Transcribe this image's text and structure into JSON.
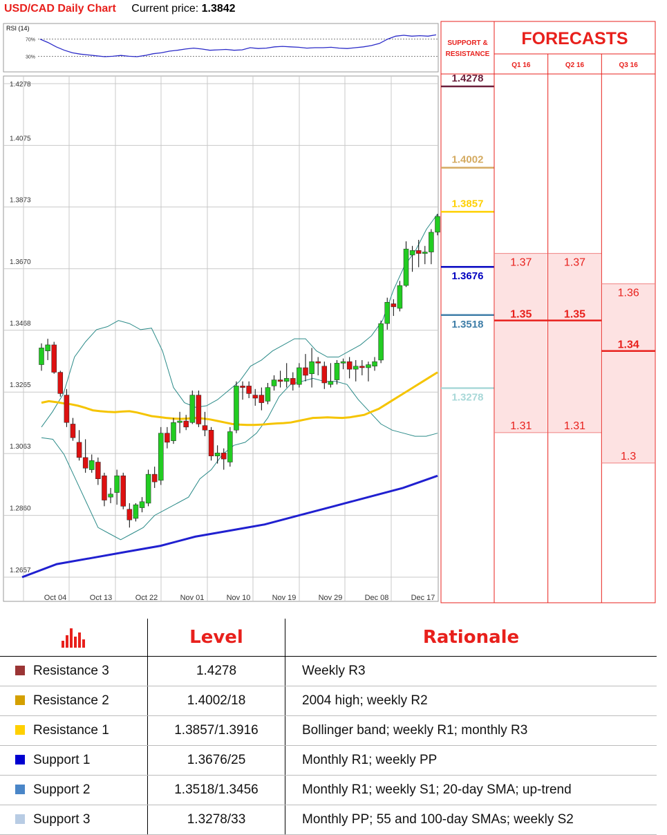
{
  "header": {
    "title": "USD/CAD Daily Chart",
    "price_label": "Current price:",
    "price": "1.3842"
  },
  "rsi": {
    "label": "RSI (14)",
    "levels": [
      "70%",
      "30%"
    ],
    "values": [
      70,
      62,
      52,
      44,
      38,
      35,
      33,
      31,
      29,
      30,
      32,
      30,
      29,
      32,
      36,
      38,
      42,
      44,
      47,
      49,
      47,
      44,
      45,
      46,
      44,
      45,
      50,
      48,
      49,
      52,
      53,
      52,
      51,
      49,
      50,
      50,
      51,
      49,
      48,
      50,
      52,
      55,
      60,
      70,
      77,
      79,
      77,
      78,
      77,
      80
    ]
  },
  "chart_data": {
    "type": "candlestick",
    "title": "USD/CAD Daily Chart",
    "y_ticks": [
      1.4278,
      1.4075,
      1.3873,
      1.367,
      1.3468,
      1.3265,
      1.3063,
      1.286,
      1.2657
    ],
    "y_tick_labels": [
      "1.4278",
      "1.4075",
      "1.3873",
      "1.3670",
      "1.3468",
      "1.3265",
      "1.3063",
      "1.2860",
      "1.2657"
    ],
    "ylim": [
      1.262,
      1.43
    ],
    "x_labels": [
      "Oct 04",
      "Oct 13",
      "Oct 22",
      "Nov 01",
      "Nov 10",
      "Nov 19",
      "Nov 29",
      "Dec 08",
      "Dec 17"
    ],
    "candles": [
      {
        "o": 1.3355,
        "h": 1.3425,
        "l": 1.3335,
        "c": 1.341
      },
      {
        "o": 1.34,
        "h": 1.344,
        "l": 1.337,
        "c": 1.342
      },
      {
        "o": 1.342,
        "h": 1.343,
        "l": 1.3325,
        "c": 1.333
      },
      {
        "o": 1.333,
        "h": 1.3335,
        "l": 1.325,
        "c": 1.326
      },
      {
        "o": 1.3255,
        "h": 1.3275,
        "l": 1.315,
        "c": 1.3165
      },
      {
        "o": 1.316,
        "h": 1.318,
        "l": 1.3105,
        "c": 1.3115
      },
      {
        "o": 1.31,
        "h": 1.314,
        "l": 1.304,
        "c": 1.305
      },
      {
        "o": 1.305,
        "h": 1.311,
        "l": 1.3,
        "c": 1.3015
      },
      {
        "o": 1.301,
        "h": 1.306,
        "l": 1.3,
        "c": 1.304
      },
      {
        "o": 1.3035,
        "h": 1.305,
        "l": 1.296,
        "c": 1.298
      },
      {
        "o": 1.299,
        "h": 1.3,
        "l": 1.289,
        "c": 1.291
      },
      {
        "o": 1.292,
        "h": 1.295,
        "l": 1.29,
        "c": 1.293
      },
      {
        "o": 1.2935,
        "h": 1.301,
        "l": 1.2895,
        "c": 1.299
      },
      {
        "o": 1.299,
        "h": 1.3,
        "l": 1.288,
        "c": 1.289
      },
      {
        "o": 1.288,
        "h": 1.29,
        "l": 1.282,
        "c": 1.2845
      },
      {
        "o": 1.285,
        "h": 1.29,
        "l": 1.284,
        "c": 1.2895
      },
      {
        "o": 1.2885,
        "h": 1.292,
        "l": 1.287,
        "c": 1.2905
      },
      {
        "o": 1.29,
        "h": 1.301,
        "l": 1.289,
        "c": 1.2995
      },
      {
        "o": 1.2995,
        "h": 1.302,
        "l": 1.295,
        "c": 1.297
      },
      {
        "o": 1.2975,
        "h": 1.315,
        "l": 1.296,
        "c": 1.313
      },
      {
        "o": 1.313,
        "h": 1.315,
        "l": 1.308,
        "c": 1.31
      },
      {
        "o": 1.3105,
        "h": 1.318,
        "l": 1.3095,
        "c": 1.3165
      },
      {
        "o": 1.3165,
        "h": 1.32,
        "l": 1.313,
        "c": 1.317
      },
      {
        "o": 1.317,
        "h": 1.319,
        "l": 1.314,
        "c": 1.315
      },
      {
        "o": 1.3165,
        "h": 1.327,
        "l": 1.316,
        "c": 1.3255
      },
      {
        "o": 1.3255,
        "h": 1.327,
        "l": 1.315,
        "c": 1.316
      },
      {
        "o": 1.3155,
        "h": 1.32,
        "l": 1.312,
        "c": 1.314
      },
      {
        "o": 1.314,
        "h": 1.315,
        "l": 1.304,
        "c": 1.3055
      },
      {
        "o": 1.3055,
        "h": 1.309,
        "l": 1.303,
        "c": 1.3065
      },
      {
        "o": 1.3065,
        "h": 1.308,
        "l": 1.301,
        "c": 1.3045
      },
      {
        "o": 1.3035,
        "h": 1.315,
        "l": 1.302,
        "c": 1.3135
      },
      {
        "o": 1.314,
        "h": 1.33,
        "l": 1.313,
        "c": 1.3285
      },
      {
        "o": 1.3285,
        "h": 1.33,
        "l": 1.324,
        "c": 1.328
      },
      {
        "o": 1.3285,
        "h": 1.33,
        "l": 1.3245,
        "c": 1.326
      },
      {
        "o": 1.3255,
        "h": 1.3275,
        "l": 1.322,
        "c": 1.3245
      },
      {
        "o": 1.3255,
        "h": 1.328,
        "l": 1.3205,
        "c": 1.323
      },
      {
        "o": 1.3235,
        "h": 1.3295,
        "l": 1.3225,
        "c": 1.328
      },
      {
        "o": 1.3285,
        "h": 1.332,
        "l": 1.327,
        "c": 1.3305
      },
      {
        "o": 1.3305,
        "h": 1.3335,
        "l": 1.328,
        "c": 1.33
      },
      {
        "o": 1.33,
        "h": 1.336,
        "l": 1.328,
        "c": 1.331
      },
      {
        "o": 1.331,
        "h": 1.333,
        "l": 1.327,
        "c": 1.329
      },
      {
        "o": 1.329,
        "h": 1.336,
        "l": 1.328,
        "c": 1.3345
      },
      {
        "o": 1.3345,
        "h": 1.339,
        "l": 1.33,
        "c": 1.332
      },
      {
        "o": 1.3325,
        "h": 1.341,
        "l": 1.328,
        "c": 1.3365
      },
      {
        "o": 1.3365,
        "h": 1.338,
        "l": 1.332,
        "c": 1.336
      },
      {
        "o": 1.335,
        "h": 1.3365,
        "l": 1.3275,
        "c": 1.3295
      },
      {
        "o": 1.329,
        "h": 1.336,
        "l": 1.328,
        "c": 1.33
      },
      {
        "o": 1.3305,
        "h": 1.337,
        "l": 1.329,
        "c": 1.336
      },
      {
        "o": 1.336,
        "h": 1.3375,
        "l": 1.334,
        "c": 1.3365
      },
      {
        "o": 1.3365,
        "h": 1.338,
        "l": 1.331,
        "c": 1.334
      },
      {
        "o": 1.334,
        "h": 1.337,
        "l": 1.33,
        "c": 1.335
      },
      {
        "o": 1.335,
        "h": 1.337,
        "l": 1.332,
        "c": 1.3345
      },
      {
        "o": 1.3345,
        "h": 1.3365,
        "l": 1.33,
        "c": 1.3355
      },
      {
        "o": 1.335,
        "h": 1.338,
        "l": 1.3335,
        "c": 1.3365
      },
      {
        "o": 1.337,
        "h": 1.35,
        "l": 1.336,
        "c": 1.349
      },
      {
        "o": 1.349,
        "h": 1.3575,
        "l": 1.347,
        "c": 1.356
      },
      {
        "o": 1.3555,
        "h": 1.357,
        "l": 1.3515,
        "c": 1.3545
      },
      {
        "o": 1.354,
        "h": 1.363,
        "l": 1.353,
        "c": 1.3615
      },
      {
        "o": 1.3615,
        "h": 1.376,
        "l": 1.361,
        "c": 1.3735
      },
      {
        "o": 1.3715,
        "h": 1.3745,
        "l": 1.366,
        "c": 1.373
      },
      {
        "o": 1.373,
        "h": 1.3765,
        "l": 1.3675,
        "c": 1.372
      },
      {
        "o": 1.372,
        "h": 1.3745,
        "l": 1.3685,
        "c": 1.3725
      },
      {
        "o": 1.3725,
        "h": 1.38,
        "l": 1.3685,
        "c": 1.379
      },
      {
        "o": 1.379,
        "h": 1.385,
        "l": 1.378,
        "c": 1.3842
      }
    ],
    "sma55": [
      1.323,
      1.3235,
      1.3232,
      1.3228,
      1.3225,
      1.322,
      1.3213,
      1.3205,
      1.3202,
      1.32,
      1.3199,
      1.3201,
      1.3202,
      1.3198,
      1.3192,
      1.3186,
      1.3183,
      1.318,
      1.3178,
      1.3177,
      1.3178,
      1.318,
      1.3178,
      1.3175,
      1.317,
      1.3165,
      1.316,
      1.3158,
      1.3157,
      1.3157,
      1.3158,
      1.316,
      1.3162,
      1.3163,
      1.3165,
      1.317,
      1.3175,
      1.318,
      1.3181,
      1.3182,
      1.3181,
      1.318,
      1.3182,
      1.3186,
      1.319,
      1.32,
      1.321,
      1.3225,
      1.324,
      1.3255,
      1.327,
      1.3285,
      1.33,
      1.3315,
      1.333
    ],
    "sma200": [
      1.2657,
      1.27,
      1.272,
      1.274,
      1.276,
      1.279,
      1.281,
      1.283,
      1.286,
      1.289,
      1.292,
      1.295,
      1.299
    ],
    "bollinger_upper": [
      1.315,
      1.32,
      1.326,
      1.338,
      1.343,
      1.347,
      1.348,
      1.35,
      1.349,
      1.347,
      1.3475,
      1.34,
      1.328,
      1.323,
      1.3215,
      1.322,
      1.324,
      1.327,
      1.33,
      1.335,
      1.337,
      1.34,
      1.342,
      1.344,
      1.344,
      1.34,
      1.338,
      1.338,
      1.34,
      1.342,
      1.345,
      1.35,
      1.36,
      1.368,
      1.373,
      1.38,
      1.385
    ],
    "bollinger_lower": [
      1.3115,
      1.311,
      1.306,
      1.298,
      1.29,
      1.282,
      1.28,
      1.278,
      1.28,
      1.282,
      1.286,
      1.288,
      1.29,
      1.292,
      1.298,
      1.301,
      1.306,
      1.309,
      1.31,
      1.313,
      1.318,
      1.325,
      1.329,
      1.33,
      1.331,
      1.33,
      1.33,
      1.329,
      1.324,
      1.32,
      1.316,
      1.314,
      1.313,
      1.312,
      1.312,
      1.313
    ]
  },
  "support_resistance": {
    "header_line1": "SUPPORT &",
    "header_line2": "RESISTANCE",
    "levels": [
      {
        "value": 1.4278,
        "label": "1.4278",
        "color": "#6b1f3b",
        "kind": "resistance"
      },
      {
        "value": 1.4002,
        "label": "1.4002",
        "color": "#d4aa60",
        "kind": "resistance"
      },
      {
        "value": 1.3857,
        "label": "1.3857",
        "color": "#ffd000",
        "kind": "resistance"
      },
      {
        "value": 1.3676,
        "label": "1.3676",
        "color": "#0000c0",
        "kind": "support"
      },
      {
        "value": 1.3518,
        "label": "1.3518",
        "color": "#3f7ea8",
        "kind": "support"
      },
      {
        "value": 1.3278,
        "label": "1.3278",
        "color": "#a8d8d8",
        "kind": "support"
      }
    ]
  },
  "forecasts": {
    "title": "FORECASTS",
    "columns": [
      {
        "label": "Q1 16",
        "high": 1.37,
        "mid": 1.35,
        "low": 1.31,
        "high_label": "1.37",
        "mid_label": "1.35",
        "low_label": "1.31"
      },
      {
        "label": "Q2 16",
        "high": 1.37,
        "mid": 1.35,
        "low": 1.31,
        "high_label": "1.37",
        "mid_label": "1.35",
        "low_label": "1.31"
      },
      {
        "label": "Q3 16",
        "high": 1.36,
        "mid": 1.34,
        "low": 1.3,
        "high_label": "1.36",
        "mid_label": "1.34",
        "low_label": "1.3"
      }
    ]
  },
  "colors": {
    "bull": "#22cc22",
    "bear": "#dd1111",
    "sma55": "#f5c400",
    "sma200": "#2020d0",
    "bollinger": "#2a8a88",
    "forecast_red": "#e8201c",
    "forecast_fill": "#fde2e2"
  },
  "table": {
    "headers": {
      "level": "Level",
      "rationale": "Rationale"
    },
    "rows": [
      {
        "name": "Resistance 3",
        "level": "1.4278",
        "rationale": "Weekly R3",
        "color": "#9b3535"
      },
      {
        "name": "Resistance 2",
        "level": "1.4002/18",
        "rationale": "2004 high; weekly R2",
        "color": "#d4a000"
      },
      {
        "name": "Resistance 1",
        "level": "1.3857/1.3916",
        "rationale": "Bollinger band; weekly R1; monthly R3",
        "color": "#ffd000"
      },
      {
        "name": "Support 1",
        "level": "1.3676/25",
        "rationale": "Monthly R1; weekly PP",
        "color": "#0000d0"
      },
      {
        "name": "Support 2",
        "level": "1.3518/1.3456",
        "rationale": "Monthly R1; weekly S1; 20-day SMA; up-trend",
        "color": "#4a86c8"
      },
      {
        "name": "Support 3",
        "level": "1.3278/33",
        "rationale": "Monthly PP; 55 and 100-day SMAs; weekly S2",
        "color": "#b8cce4"
      }
    ]
  }
}
